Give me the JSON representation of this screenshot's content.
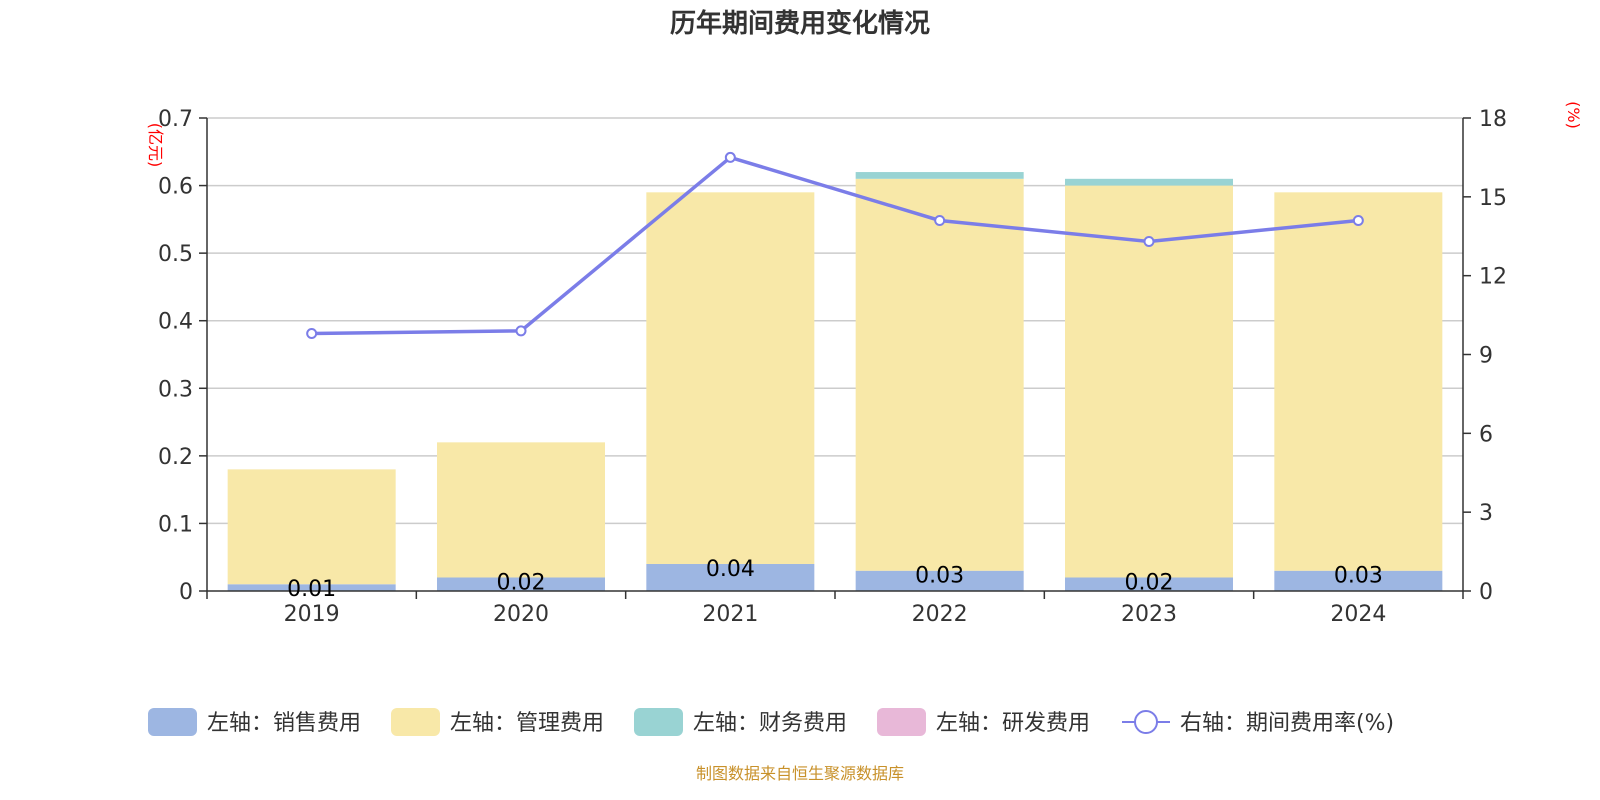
{
  "chart_data": {
    "type": "bar",
    "stacked": true,
    "title": "历年期间费用变化情况",
    "categories": [
      "2019",
      "2020",
      "2021",
      "2022",
      "2023",
      "2024"
    ],
    "y_left": {
      "unit": "(亿元)",
      "lim": [
        0,
        0.7
      ],
      "ticks": [
        "0",
        "0.1",
        "0.2",
        "0.3",
        "0.4",
        "0.5",
        "0.6",
        "0.7"
      ]
    },
    "y_right": {
      "unit": "(%)",
      "lim": [
        0,
        18
      ],
      "ticks": [
        "0",
        "3",
        "6",
        "9",
        "12",
        "15",
        "18"
      ]
    },
    "grid": true,
    "legend_position": "bottom",
    "series": [
      {
        "name": "左轴：销售费用",
        "axis": "left",
        "type": "bar",
        "color": "#9db6e2",
        "values": [
          0.01,
          0.02,
          0.04,
          0.03,
          0.02,
          0.03
        ],
        "labels": [
          "0.01",
          "0.02",
          "0.04",
          "0.03",
          "0.02",
          "0.03"
        ]
      },
      {
        "name": "左轴：管理费用",
        "axis": "left",
        "type": "bar",
        "color": "#f8e8a8",
        "values": [
          0.17,
          0.2,
          0.55,
          0.58,
          0.58,
          0.56
        ]
      },
      {
        "name": "左轴：财务费用",
        "axis": "left",
        "type": "bar",
        "color": "#99d3d3",
        "values": [
          0,
          0,
          0,
          0.01,
          0.01,
          0
        ]
      },
      {
        "name": "左轴：研发费用",
        "axis": "left",
        "type": "bar",
        "color": "#e8b8d8",
        "values": [
          0,
          0,
          0,
          0,
          0,
          0
        ]
      },
      {
        "name": "右轴：期间费用率(%)",
        "axis": "right",
        "type": "line",
        "color": "#7b7de8",
        "values": [
          9.8,
          9.9,
          16.5,
          14.1,
          13.3,
          14.1
        ]
      }
    ],
    "source": "制图数据来自恒生聚源数据库"
  }
}
